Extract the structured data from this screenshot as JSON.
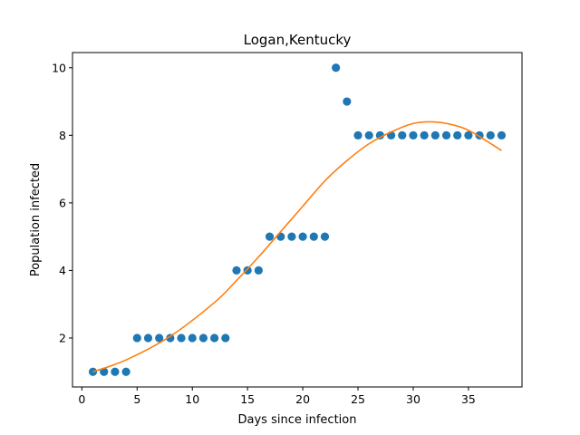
{
  "chart_data": {
    "type": "scatter",
    "title": "Logan,Kentucky",
    "xlabel": "Days since infection",
    "ylabel": "Population infected",
    "xlim": [
      -0.85,
      39.85
    ],
    "ylim": [
      0.55,
      10.45
    ],
    "xticks": [
      0,
      5,
      10,
      15,
      20,
      25,
      30,
      35
    ],
    "yticks": [
      2,
      4,
      6,
      8,
      10
    ],
    "grid": false,
    "series": [
      {
        "kind": "scatter",
        "color": "#1f77b4",
        "x": [
          1,
          2,
          3,
          4,
          5,
          6,
          7,
          8,
          9,
          10,
          11,
          12,
          13,
          14,
          15,
          16,
          17,
          18,
          19,
          20,
          21,
          22,
          23,
          24,
          25,
          26,
          27,
          28,
          29,
          30,
          31,
          32,
          33,
          34,
          35,
          36,
          37,
          38
        ],
        "y": [
          1,
          1,
          1,
          1,
          2,
          2,
          2,
          2,
          2,
          2,
          2,
          2,
          2,
          4,
          4,
          4,
          5,
          5,
          5,
          5,
          5,
          5,
          10,
          9,
          8,
          8,
          8,
          8,
          8,
          8,
          8,
          8,
          8,
          8,
          8,
          8,
          8,
          8
        ]
      },
      {
        "kind": "line",
        "color": "#ff7f0e",
        "x": [
          1,
          4,
          8,
          12,
          14,
          16,
          18,
          20,
          22,
          24,
          26,
          28,
          30,
          31.5,
          33,
          35,
          38
        ],
        "y": [
          1.0,
          1.35,
          2.05,
          3.05,
          3.7,
          4.4,
          5.15,
          5.9,
          6.65,
          7.25,
          7.75,
          8.1,
          8.35,
          8.4,
          8.35,
          8.15,
          7.55
        ]
      }
    ]
  }
}
